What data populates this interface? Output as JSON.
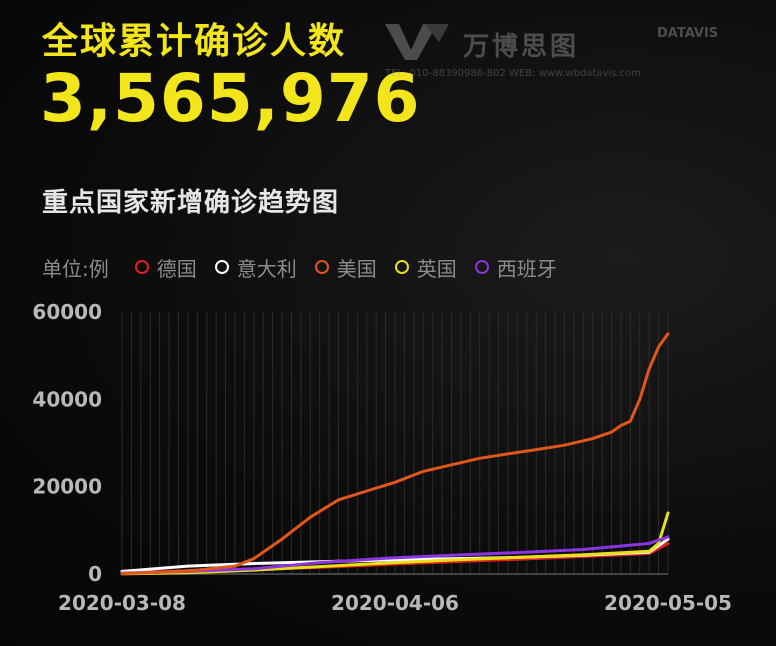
{
  "header": {
    "title": "全球累计确诊人数",
    "total": "3,565,976",
    "subtitle": "重点国家新增确诊趋势图"
  },
  "logo": {
    "name_cn": "万博思图",
    "name_en": "DATAVIS",
    "contact": "TEL: 010-88390986-802  WEB: www.wbdatavis.com"
  },
  "legend": {
    "unit_label": "单位:例"
  },
  "colors": {
    "accent": "#f2e51b",
    "germany": "#e02020",
    "italy": "#ffffff",
    "usa": "#e0561b",
    "uk": "#e8df18",
    "spain": "#8a35e0"
  },
  "chart_data": {
    "type": "line",
    "x_start": "2020-03-08",
    "x_end": "2020-05-05",
    "x_tick_labels": [
      "2020-03-08",
      "2020-04-06",
      "2020-05-05"
    ],
    "ylim": [
      0,
      60000
    ],
    "y_ticks": [
      0,
      20000,
      40000,
      60000
    ],
    "grid": true,
    "legend_position": "top-left",
    "series": [
      {
        "name": "德国",
        "color": "#e02020",
        "x": [
          "2020-03-08",
          "2020-03-15",
          "2020-03-22",
          "2020-03-29",
          "2020-04-05",
          "2020-04-12",
          "2020-04-19",
          "2020-04-26",
          "2020-05-03",
          "2020-05-05"
        ],
        "values": [
          300,
          700,
          1100,
          1500,
          2200,
          2800,
          3400,
          4000,
          4700,
          7000
        ]
      },
      {
        "name": "意大利",
        "color": "#ffffff",
        "x": [
          "2020-03-08",
          "2020-03-15",
          "2020-03-22",
          "2020-03-29",
          "2020-04-05",
          "2020-04-12",
          "2020-04-19",
          "2020-04-26",
          "2020-05-03",
          "2020-05-05"
        ],
        "values": [
          600,
          1800,
          2400,
          2800,
          3200,
          3500,
          3800,
          4300,
          5000,
          8000
        ]
      },
      {
        "name": "美国",
        "color": "#e0561b",
        "x": [
          "2020-03-08",
          "2020-03-12",
          "2020-03-16",
          "2020-03-20",
          "2020-03-22",
          "2020-03-25",
          "2020-03-28",
          "2020-03-31",
          "2020-04-03",
          "2020-04-06",
          "2020-04-09",
          "2020-04-12",
          "2020-04-15",
          "2020-04-18",
          "2020-04-21",
          "2020-04-24",
          "2020-04-27",
          "2020-04-29",
          "2020-04-30",
          "2020-05-01",
          "2020-05-02",
          "2020-05-03",
          "2020-05-04",
          "2020-05-05"
        ],
        "values": [
          100,
          400,
          900,
          1800,
          3500,
          8000,
          13000,
          17000,
          19000,
          21000,
          23500,
          25000,
          26500,
          27500,
          28500,
          29500,
          31000,
          32500,
          34000,
          35000,
          40000,
          47000,
          52000,
          55000
        ]
      },
      {
        "name": "英国",
        "color": "#e8df18",
        "x": [
          "2020-03-08",
          "2020-03-15",
          "2020-03-22",
          "2020-03-29",
          "2020-04-05",
          "2020-04-12",
          "2020-04-19",
          "2020-04-26",
          "2020-05-03",
          "2020-05-04",
          "2020-05-05"
        ],
        "values": [
          50,
          300,
          900,
          1700,
          2500,
          3200,
          3800,
          4400,
          5200,
          7000,
          14000
        ]
      },
      {
        "name": "西班牙",
        "color": "#8a35e0",
        "x": [
          "2020-03-08",
          "2020-03-15",
          "2020-03-22",
          "2020-03-29",
          "2020-04-05",
          "2020-04-12",
          "2020-04-19",
          "2020-04-26",
          "2020-05-03",
          "2020-05-05"
        ],
        "values": [
          200,
          600,
          1200,
          2600,
          3600,
          4300,
          4900,
          5600,
          7000,
          8500
        ]
      }
    ]
  }
}
